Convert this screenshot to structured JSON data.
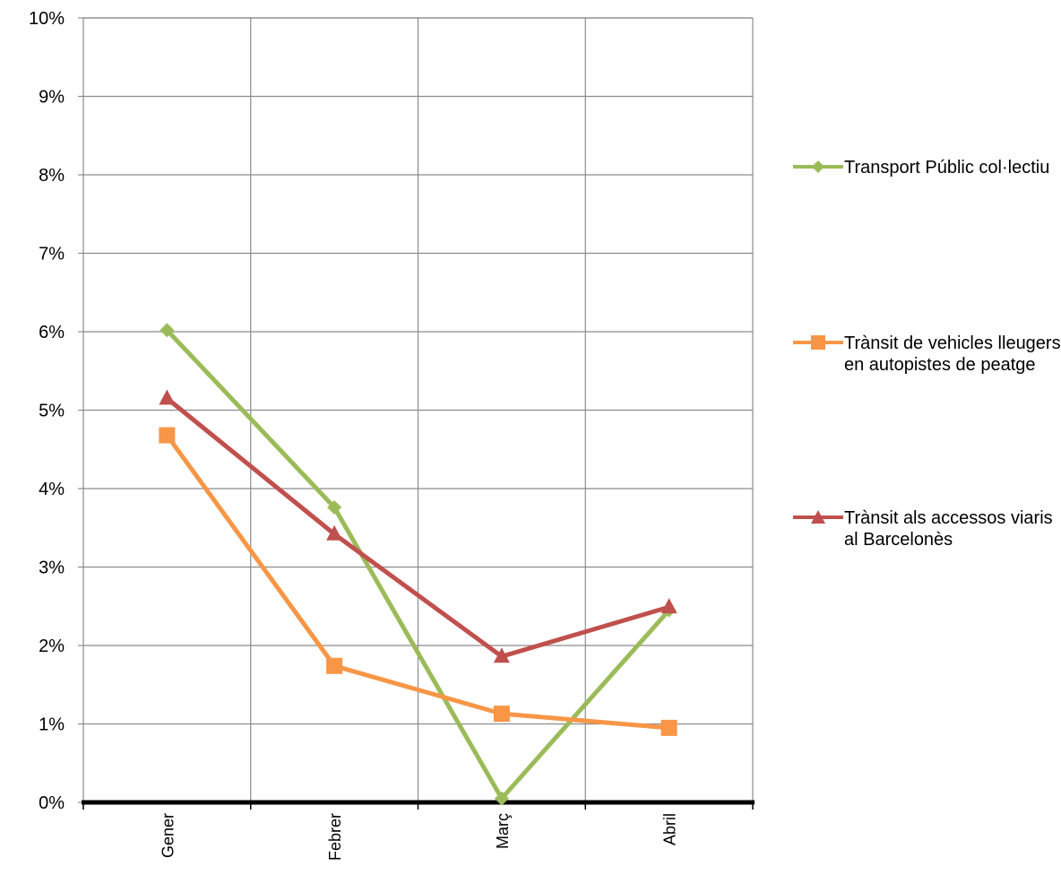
{
  "chart_data": {
    "type": "line",
    "categories": [
      "Gener",
      "Febrer",
      "Març",
      "Abril"
    ],
    "ylim": [
      0,
      10
    ],
    "yticks": [
      0,
      1,
      2,
      3,
      4,
      5,
      6,
      7,
      8,
      9,
      10
    ],
    "ytick_labels": [
      "0%",
      "1%",
      "2%",
      "3%",
      "4%",
      "5%",
      "6%",
      "7%",
      "8%",
      "9%",
      "10%"
    ],
    "grid": true,
    "legend_position": "right",
    "series": [
      {
        "name": "Transport Públic col·lectiu",
        "values": [
          6.02,
          3.76,
          0.05,
          2.45
        ],
        "color": "#9BBB59",
        "marker": "diamond"
      },
      {
        "name": "Trànsit de vehicles lleugers en autopistes de peatge",
        "values": [
          4.68,
          1.74,
          1.13,
          0.95
        ],
        "color": "#F79646",
        "marker": "square"
      },
      {
        "name": "Trànsit als accessos viaris al Barcelonès",
        "values": [
          5.15,
          3.42,
          1.86,
          2.49
        ],
        "color": "#C0504D",
        "marker": "triangle"
      }
    ]
  }
}
